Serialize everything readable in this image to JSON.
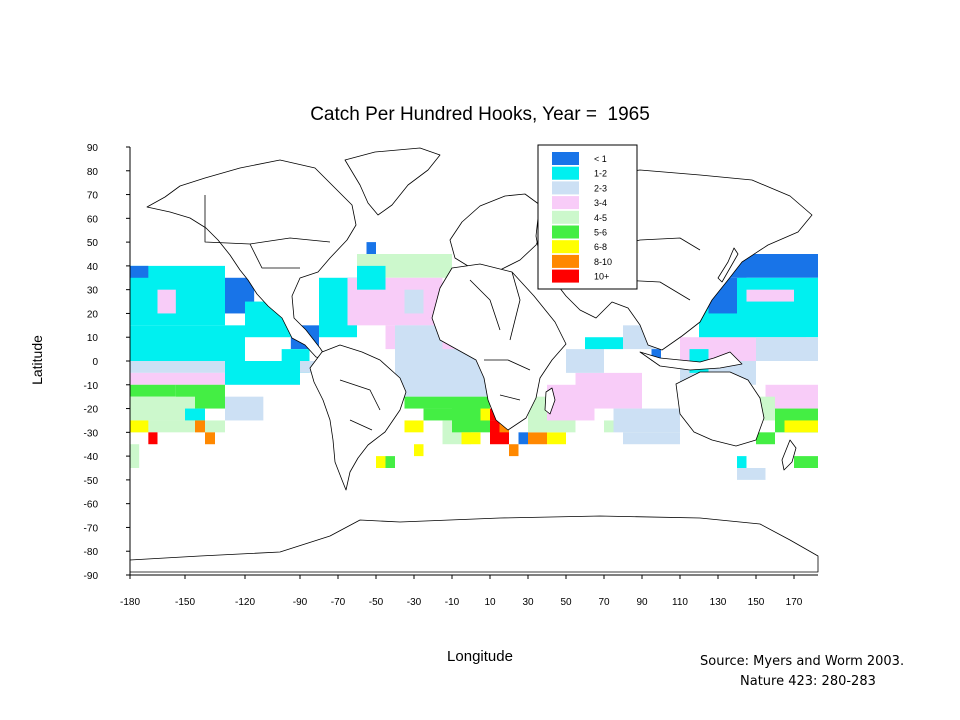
{
  "slide": {
    "title_prefix": "Catch Per Hundred Hooks, Year =",
    "year": "1965",
    "source_line1": "Source: Myers and Worm 2003.",
    "source_line2": "Nature 423: 280-283"
  },
  "chart_data": {
    "type": "heatmap",
    "title": "Catch Per Hundred Hooks, Year =  1965",
    "xlabel": "Longitude",
    "ylabel": "Latitude",
    "xlim": [
      -180,
      180
    ],
    "ylim": [
      -90,
      90
    ],
    "x_ticks": [
      -180,
      -150,
      -120,
      -90,
      -70,
      -50,
      -30,
      -10,
      10,
      30,
      50,
      70,
      90,
      110,
      130,
      150,
      170
    ],
    "y_ticks": [
      90,
      80,
      70,
      60,
      50,
      40,
      30,
      20,
      10,
      0,
      -10,
      -20,
      -30,
      -40,
      -50,
      -60,
      -70,
      -80,
      -90
    ],
    "cell_size_deg": 5,
    "legend": {
      "placement": "top-center",
      "classes": [
        {
          "label": "< 1",
          "color": "#1874e8"
        },
        {
          "label": "1-2",
          "color": "#00f0f0"
        },
        {
          "label": "2-3",
          "color": "#cce0f4"
        },
        {
          "label": "3-4",
          "color": "#f8ccf8"
        },
        {
          "label": "4-5",
          "color": "#ccf8cc"
        },
        {
          "label": "5-6",
          "color": "#44ee44"
        },
        {
          "label": "6-8",
          "color": "#ffff00"
        },
        {
          "label": "8-10",
          "color": "#ff8800"
        },
        {
          "label": "10+",
          "color": "#ff0000"
        }
      ]
    },
    "regions": [
      {
        "lon": [
          -180,
          -130
        ],
        "lat": [
          15,
          40
        ],
        "class": 1
      },
      {
        "lon": [
          -180,
          -120
        ],
        "lat": [
          0,
          15
        ],
        "class": 1
      },
      {
        "lon": [
          -180,
          -170
        ],
        "lat": [
          35,
          40
        ],
        "class": 0
      },
      {
        "lon": [
          -165,
          -155
        ],
        "lat": [
          20,
          30
        ],
        "class": 3
      },
      {
        "lon": [
          -130,
          -115
        ],
        "lat": [
          20,
          35
        ],
        "class": 0
      },
      {
        "lon": [
          -120,
          -95
        ],
        "lat": [
          10,
          25
        ],
        "class": 1
      },
      {
        "lon": [
          -95,
          -80
        ],
        "lat": [
          5,
          15
        ],
        "class": 0
      },
      {
        "lon": [
          -100,
          -85
        ],
        "lat": [
          -5,
          5
        ],
        "class": 1
      },
      {
        "lon": [
          -180,
          -80
        ],
        "lat": [
          -5,
          0
        ],
        "class": 2
      },
      {
        "lon": [
          -180,
          -90
        ],
        "lat": [
          -10,
          -5
        ],
        "class": 3
      },
      {
        "lon": [
          -130,
          -90
        ],
        "lat": [
          -10,
          0
        ],
        "class": 1
      },
      {
        "lon": [
          -180,
          -155
        ],
        "lat": [
          -15,
          -10
        ],
        "class": 5
      },
      {
        "lon": [
          -155,
          -130
        ],
        "lat": [
          -20,
          -10
        ],
        "class": 5
      },
      {
        "lon": [
          -130,
          -110
        ],
        "lat": [
          -25,
          -15
        ],
        "class": 2
      },
      {
        "lon": [
          -180,
          -145
        ],
        "lat": [
          -25,
          -15
        ],
        "class": 4
      },
      {
        "lon": [
          -150,
          -140
        ],
        "lat": [
          -25,
          -20
        ],
        "class": 1
      },
      {
        "lon": [
          -180,
          -130
        ],
        "lat": [
          -30,
          -25
        ],
        "class": 4
      },
      {
        "lon": [
          -180,
          -170
        ],
        "lat": [
          -30,
          -25
        ],
        "class": 6
      },
      {
        "lon": [
          -170,
          -165
        ],
        "lat": [
          -35,
          -30
        ],
        "class": 8
      },
      {
        "lon": [
          -145,
          -140
        ],
        "lat": [
          -30,
          -25
        ],
        "class": 7
      },
      {
        "lon": [
          -140,
          -135
        ],
        "lat": [
          -35,
          -30
        ],
        "class": 7
      },
      {
        "lon": [
          -180,
          -175
        ],
        "lat": [
          -45,
          -35
        ],
        "class": 4
      },
      {
        "lon": [
          -80,
          -60
        ],
        "lat": [
          10,
          35
        ],
        "class": 1
      },
      {
        "lon": [
          -55,
          -50
        ],
        "lat": [
          45,
          50
        ],
        "class": 0
      },
      {
        "lon": [
          -60,
          -10
        ],
        "lat": [
          35,
          45
        ],
        "class": 4
      },
      {
        "lon": [
          -65,
          -15
        ],
        "lat": [
          15,
          35
        ],
        "class": 3
      },
      {
        "lon": [
          -60,
          -45
        ],
        "lat": [
          30,
          40
        ],
        "class": 1
      },
      {
        "lon": [
          -35,
          -25
        ],
        "lat": [
          20,
          30
        ],
        "class": 2
      },
      {
        "lon": [
          -45,
          -20
        ],
        "lat": [
          5,
          15
        ],
        "class": 3
      },
      {
        "lon": [
          -40,
          5
        ],
        "lat": [
          0,
          15
        ],
        "class": 2
      },
      {
        "lon": [
          -15,
          10
        ],
        "lat": [
          5,
          15
        ],
        "class": 3
      },
      {
        "lon": [
          -5,
          0
        ],
        "lat": [
          5,
          10
        ],
        "class": 0
      },
      {
        "lon": [
          -40,
          10
        ],
        "lat": [
          -15,
          0
        ],
        "class": 2
      },
      {
        "lon": [
          -35,
          10
        ],
        "lat": [
          -20,
          -15
        ],
        "class": 5
      },
      {
        "lon": [
          -25,
          5
        ],
        "lat": [
          -25,
          -20
        ],
        "class": 5
      },
      {
        "lon": [
          -35,
          -25
        ],
        "lat": [
          -30,
          -25
        ],
        "class": 6
      },
      {
        "lon": [
          -15,
          0
        ],
        "lat": [
          -35,
          -25
        ],
        "class": 4
      },
      {
        "lon": [
          -30,
          -25
        ],
        "lat": [
          -40,
          -35
        ],
        "class": 6
      },
      {
        "lon": [
          -10,
          10
        ],
        "lat": [
          -30,
          -20
        ],
        "class": 5
      },
      {
        "lon": [
          -5,
          5
        ],
        "lat": [
          -35,
          -30
        ],
        "class": 6
      },
      {
        "lon": [
          5,
          10
        ],
        "lat": [
          -25,
          -20
        ],
        "class": 6
      },
      {
        "lon": [
          10,
          15
        ],
        "lat": [
          -25,
          -20
        ],
        "class": 8
      },
      {
        "lon": [
          10,
          20
        ],
        "lat": [
          -35,
          -25
        ],
        "class": 8
      },
      {
        "lon": [
          15,
          20
        ],
        "lat": [
          -30,
          -25
        ],
        "class": 7
      },
      {
        "lon": [
          20,
          25
        ],
        "lat": [
          -40,
          -35
        ],
        "class": 7
      },
      {
        "lon": [
          25,
          30
        ],
        "lat": [
          -35,
          -30
        ],
        "class": 0
      },
      {
        "lon": [
          30,
          40
        ],
        "lat": [
          -35,
          -30
        ],
        "class": 7
      },
      {
        "lon": [
          40,
          50
        ],
        "lat": [
          -35,
          -30
        ],
        "class": 6
      },
      {
        "lon": [
          30,
          55
        ],
        "lat": [
          -30,
          -15
        ],
        "class": 4
      },
      {
        "lon": [
          40,
          65
        ],
        "lat": [
          -25,
          -10
        ],
        "class": 3
      },
      {
        "lon": [
          55,
          90
        ],
        "lat": [
          -20,
          -5
        ],
        "class": 3
      },
      {
        "lon": [
          50,
          70
        ],
        "lat": [
          -5,
          5
        ],
        "class": 2
      },
      {
        "lon": [
          60,
          80
        ],
        "lat": [
          5,
          10
        ],
        "class": 1
      },
      {
        "lon": [
          80,
          100
        ],
        "lat": [
          5,
          15
        ],
        "class": 2
      },
      {
        "lon": [
          75,
          110
        ],
        "lat": [
          -30,
          -20
        ],
        "class": 2
      },
      {
        "lon": [
          80,
          110
        ],
        "lat": [
          -35,
          -30
        ],
        "class": 2
      },
      {
        "lon": [
          70,
          75
        ],
        "lat": [
          -30,
          -25
        ],
        "class": 4
      },
      {
        "lon": [
          95,
          100
        ],
        "lat": [
          0,
          5
        ],
        "class": 0
      },
      {
        "lon": [
          110,
          150
        ],
        "lat": [
          -10,
          0
        ],
        "class": 2
      },
      {
        "lon": [
          110,
          175
        ],
        "lat": [
          0,
          10
        ],
        "class": 3
      },
      {
        "lon": [
          115,
          125
        ],
        "lat": [
          -5,
          5
        ],
        "class": 1
      },
      {
        "lon": [
          120,
          140
        ],
        "lat": [
          10,
          25
        ],
        "class": 1
      },
      {
        "lon": [
          125,
          140
        ],
        "lat": [
          20,
          35
        ],
        "class": 0
      },
      {
        "lon": [
          135,
          145
        ],
        "lat": [
          35,
          50
        ],
        "class": 0
      },
      {
        "lon": [
          140,
          180
        ],
        "lat": [
          35,
          45
        ],
        "class": 0
      },
      {
        "lon": [
          140,
          180
        ],
        "lat": [
          10,
          35
        ],
        "class": 1
      },
      {
        "lon": [
          150,
          180
        ],
        "lat": [
          0,
          10
        ],
        "class": 2
      },
      {
        "lon": [
          145,
          170
        ],
        "lat": [
          25,
          30
        ],
        "class": 3
      },
      {
        "lon": [
          155,
          180
        ],
        "lat": [
          -20,
          -10
        ],
        "class": 3
      },
      {
        "lon": [
          150,
          160
        ],
        "lat": [
          -25,
          -15
        ],
        "class": 4
      },
      {
        "lon": [
          160,
          180
        ],
        "lat": [
          -30,
          -20
        ],
        "class": 5
      },
      {
        "lon": [
          165,
          180
        ],
        "lat": [
          -30,
          -25
        ],
        "class": 6
      },
      {
        "lon": [
          150,
          160
        ],
        "lat": [
          -35,
          -30
        ],
        "class": 5
      },
      {
        "lon": [
          140,
          145
        ],
        "lat": [
          -45,
          -40
        ],
        "class": 1
      },
      {
        "lon": [
          140,
          155
        ],
        "lat": [
          -50,
          -45
        ],
        "class": 2
      },
      {
        "lon": [
          170,
          180
        ],
        "lat": [
          -45,
          -40
        ],
        "class": 5
      },
      {
        "lon": [
          -50,
          -45
        ],
        "lat": [
          -45,
          -40
        ],
        "class": 6
      },
      {
        "lon": [
          -45,
          -40
        ],
        "lat": [
          -45,
          -40
        ],
        "class": 5
      }
    ]
  }
}
